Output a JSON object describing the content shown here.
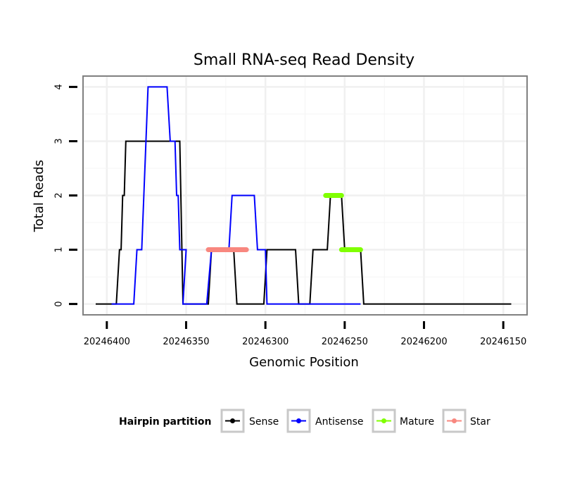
{
  "chart_data": {
    "type": "line",
    "title": "Small RNA-seq Read Density",
    "xlabel": "Genomic Position",
    "ylabel": "Total Reads",
    "x_reversed": true,
    "xlim": [
      20246415,
      20246135
    ],
    "ylim": [
      -0.2,
      4.2
    ],
    "xticks": [
      20246400,
      20246350,
      20246300,
      20246250,
      20246200,
      20246150
    ],
    "xtick_labels": [
      "20246400",
      "20246350",
      "20246300",
      "20246250",
      "20246200",
      "20246150"
    ],
    "yticks": [
      0,
      1,
      2,
      3,
      4
    ],
    "ytick_labels": [
      "0",
      "1",
      "2",
      "3",
      "4"
    ],
    "grid": true,
    "legend": {
      "title": "Hairpin partition",
      "position": "bottom",
      "entries": [
        "Sense",
        "Antisense",
        "Mature",
        "Star"
      ]
    },
    "series": [
      {
        "name": "Sense",
        "color": "#000000",
        "kind": "step-line",
        "points": [
          [
            20246407,
            0
          ],
          [
            20246394,
            0
          ],
          [
            20246392,
            1
          ],
          [
            20246391,
            1
          ],
          [
            20246390,
            2
          ],
          [
            20246389,
            2
          ],
          [
            20246388,
            3
          ],
          [
            20246354,
            3
          ],
          [
            20246352,
            0
          ],
          [
            20246336,
            0
          ],
          [
            20246334,
            1
          ],
          [
            20246320,
            1
          ],
          [
            20246318,
            0
          ],
          [
            20246301,
            0
          ],
          [
            20246299,
            1
          ],
          [
            20246281,
            1
          ],
          [
            20246279,
            0
          ],
          [
            20246272,
            0
          ],
          [
            20246270,
            1
          ],
          [
            20246261,
            1
          ],
          [
            20246259,
            2
          ],
          [
            20246252,
            2
          ],
          [
            20246250,
            1
          ],
          [
            20246240,
            1
          ],
          [
            20246238,
            0
          ],
          [
            20246145,
            0
          ]
        ]
      },
      {
        "name": "Antisense",
        "color": "#0000ff",
        "kind": "step-line",
        "points": [
          [
            20246397,
            0
          ],
          [
            20246383,
            0
          ],
          [
            20246381,
            1
          ],
          [
            20246378,
            1
          ],
          [
            20246374,
            4
          ],
          [
            20246362,
            4
          ],
          [
            20246360,
            3
          ],
          [
            20246357,
            3
          ],
          [
            20246356,
            2
          ],
          [
            20246355,
            2
          ],
          [
            20246354,
            1
          ],
          [
            20246350,
            1
          ],
          [
            20246352,
            0
          ],
          [
            20246337,
            0
          ],
          [
            20246334,
            1
          ],
          [
            20246323,
            1
          ],
          [
            20246321,
            2
          ],
          [
            20246307,
            2
          ],
          [
            20246305,
            1
          ],
          [
            20246300,
            1
          ],
          [
            20246299,
            0
          ],
          [
            20246240,
            0
          ]
        ]
      },
      {
        "name": "Mature",
        "color": "#80ff00",
        "kind": "thick-segment",
        "segments": [
          [
            [
              20246262,
              2
            ],
            [
              20246252,
              2
            ]
          ],
          [
            [
              20246252,
              1
            ],
            [
              20246240,
              1
            ]
          ]
        ]
      },
      {
        "name": "Star",
        "color": "#f8877f",
        "kind": "thick-segment",
        "segments": [
          [
            [
              20246336,
              1
            ],
            [
              20246312,
              1
            ]
          ]
        ]
      }
    ]
  }
}
